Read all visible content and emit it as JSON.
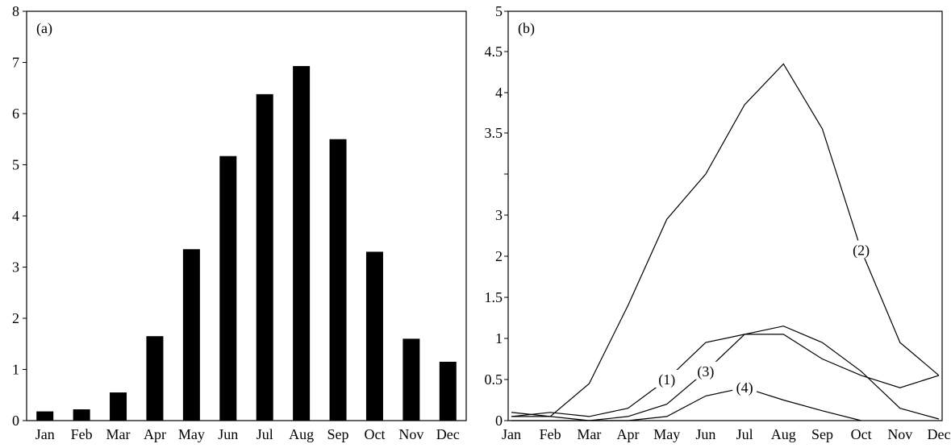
{
  "chart_data": [
    {
      "type": "bar",
      "panel_label": "(a)",
      "categories": [
        "Jan",
        "Feb",
        "Mar",
        "Apr",
        "May",
        "Jun",
        "Jul",
        "Aug",
        "Sep",
        "Oct",
        "Nov",
        "Dec"
      ],
      "values": [
        0.18,
        0.22,
        0.55,
        1.65,
        3.35,
        5.17,
        6.38,
        6.93,
        5.5,
        3.3,
        1.6,
        1.15
      ],
      "title": "",
      "xlabel": "",
      "ylabel": "",
      "ylim": [
        0,
        8
      ],
      "yticks": [
        "0",
        "1",
        "2",
        "3",
        "4",
        "5",
        "6",
        "7",
        "8"
      ],
      "grid": false,
      "bar_color": "#000000"
    },
    {
      "type": "line",
      "panel_label": "(b)",
      "categories": [
        "Jan",
        "Feb",
        "Mar",
        "Apr",
        "May",
        "Jun",
        "Jul",
        "Aug",
        "Sep",
        "Oct",
        "Nov",
        "Dec"
      ],
      "yticks": [
        "0",
        "0.5",
        "1",
        "1.5",
        "2",
        "3",
        "3.5",
        "4",
        "4.5",
        "5"
      ],
      "title": "",
      "xlabel": "",
      "ylabel": "",
      "grid": false,
      "line_color": "#000000",
      "series": [
        {
          "label": "(1)",
          "label_at": 4,
          "values": [
            0.05,
            0.1,
            0.05,
            0.15,
            0.5,
            0.95,
            1.05,
            1.05,
            0.75,
            0.55,
            0.4,
            0.55
          ]
        },
        {
          "label": "(2)",
          "label_at": 9,
          "values": [
            0.1,
            0.05,
            0.45,
            1.4,
            2.9,
            3.25,
            3.85,
            4.35,
            3.55,
            2.15,
            0.95,
            0.55
          ]
        },
        {
          "label": "(3)",
          "label_at": 5,
          "values": [
            0.05,
            0.05,
            0.0,
            0.05,
            0.2,
            0.6,
            1.05,
            1.15,
            0.95,
            0.6,
            0.15,
            0.02
          ]
        },
        {
          "label": "(4)",
          "label_at": 6,
          "values": [
            0.0,
            0.0,
            0.0,
            0.0,
            0.05,
            0.3,
            0.4,
            0.25,
            0.12,
            0.0,
            null,
            null
          ]
        }
      ]
    }
  ]
}
